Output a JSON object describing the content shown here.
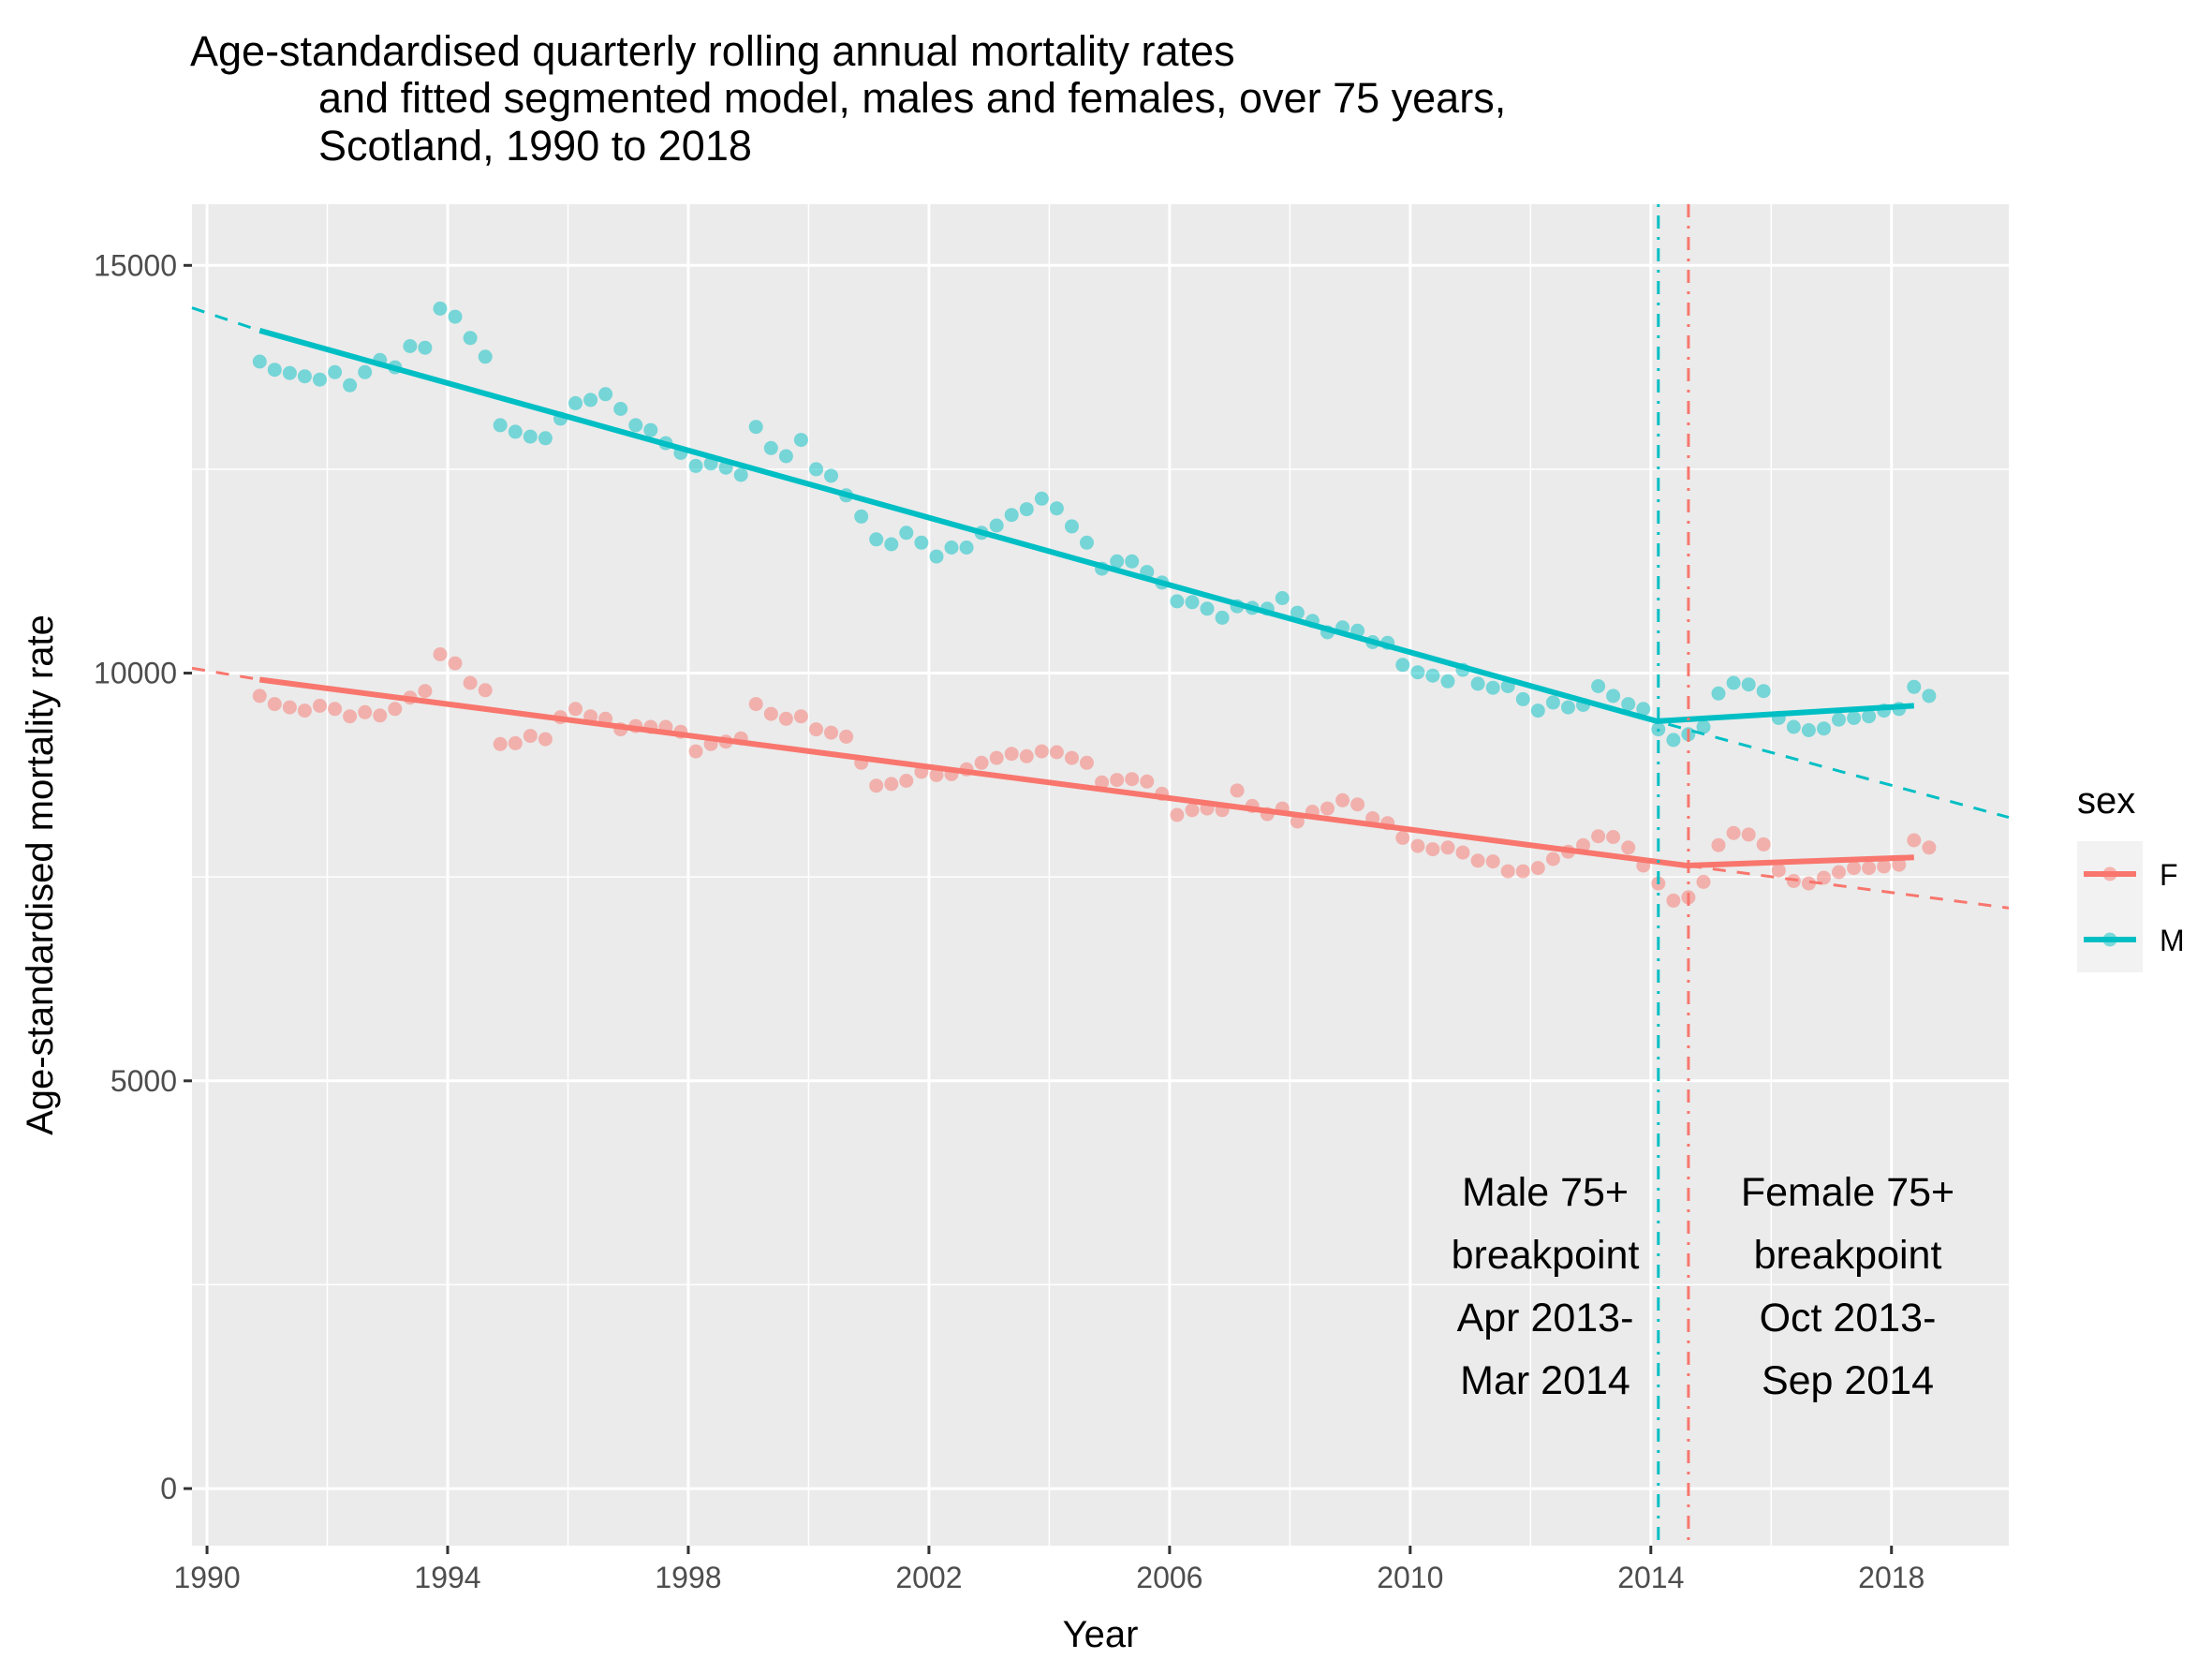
{
  "chart_data": {
    "type": "scatter",
    "title_lines": [
      "Age-standardised quarterly rolling annual mortality rates",
      "and fitted segmented model, males and females, over 75 years,",
      "Scotland, 1990 to 2018"
    ],
    "xlabel": "Year",
    "ylabel": "Age-standardised mortality rate",
    "xlim": [
      1989.75,
      2019.95
    ],
    "ylim": [
      -700,
      15750
    ],
    "x_ticks": [
      1990,
      1994,
      1998,
      2002,
      2006,
      2010,
      2014,
      2018
    ],
    "y_ticks": [
      0,
      5000,
      10000,
      15000
    ],
    "x_tick_labels": [
      "1990",
      "1994",
      "1998",
      "2002",
      "2006",
      "2010",
      "2014",
      "2018"
    ],
    "y_tick_labels": [
      "0",
      "5000",
      "10000",
      "15000"
    ],
    "grid": true,
    "legend": {
      "title": "sex",
      "position": "right",
      "entries": [
        "F",
        "M"
      ]
    },
    "series": [
      {
        "name": "F",
        "color": "#F8766D",
        "start": 1990.875,
        "step": 0.25,
        "values": [
          9720,
          9620,
          9580,
          9540,
          9600,
          9560,
          9470,
          9520,
          9480,
          9560,
          9700,
          9780,
          10230,
          10120,
          9880,
          9790,
          9130,
          9140,
          9230,
          9190,
          9460,
          9560,
          9470,
          9440,
          9310,
          9350,
          9340,
          9340,
          9280,
          9040,
          9130,
          9160,
          9200,
          9620,
          9500,
          9440,
          9470,
          9310,
          9270,
          9220,
          8900,
          8620,
          8640,
          8680,
          8790,
          8750,
          8760,
          8820,
          8900,
          8960,
          9010,
          8980,
          9040,
          9030,
          8960,
          8900,
          8660,
          8690,
          8700,
          8670,
          8520,
          8260,
          8320,
          8340,
          8320,
          8560,
          8370,
          8270,
          8340,
          8180,
          8300,
          8340,
          8440,
          8390,
          8220,
          8160,
          7980,
          7880,
          7840,
          7860,
          7800,
          7700,
          7690,
          7570,
          7570,
          7610,
          7720,
          7810,
          7890,
          8000,
          7990,
          7860,
          7640,
          7420,
          7210,
          7250,
          7440,
          7890,
          8040,
          8020,
          7900,
          7580,
          7450,
          7420,
          7490,
          7560,
          7610,
          7610,
          7630,
          7650,
          7950,
          7860
        ]
      },
      {
        "name": "M",
        "color": "#00BFC4",
        "start": 1990.875,
        "step": 0.25,
        "values": [
          13820,
          13720,
          13680,
          13640,
          13600,
          13690,
          13530,
          13690,
          13840,
          13750,
          14010,
          13990,
          14470,
          14370,
          14110,
          13880,
          13040,
          12960,
          12900,
          12880,
          13120,
          13310,
          13350,
          13420,
          13240,
          13040,
          12980,
          12820,
          12700,
          12540,
          12570,
          12520,
          12430,
          13020,
          12760,
          12660,
          12860,
          12500,
          12420,
          12180,
          11920,
          11640,
          11580,
          11720,
          11600,
          11430,
          11540,
          11540,
          11720,
          11810,
          11940,
          12010,
          12140,
          12020,
          11800,
          11600,
          11280,
          11370,
          11370,
          11240,
          11110,
          10880,
          10870,
          10790,
          10680,
          10820,
          10800,
          10790,
          10920,
          10740,
          10640,
          10500,
          10560,
          10520,
          10380,
          10370,
          10100,
          10010,
          9970,
          9900,
          10040,
          9870,
          9820,
          9840,
          9680,
          9540,
          9640,
          9580,
          9610,
          9840,
          9720,
          9620,
          9560,
          9310,
          9180,
          9250,
          9340,
          9750,
          9880,
          9860,
          9780,
          9450,
          9340,
          9300,
          9320,
          9430,
          9450,
          9470,
          9540,
          9560,
          9830,
          9720
        ]
      }
    ],
    "fitted_segments": [
      {
        "name": "F",
        "solid": [
          [
            1990.875,
            9920
          ],
          [
            2014.6,
            7640
          ],
          [
            2018.375,
            7740
          ]
        ],
        "dashed": [
          [
            1989.75,
            10060
          ],
          [
            1990.875,
            9920
          ],
          [
            2014.6,
            7640
          ],
          [
            2019.95,
            7120
          ]
        ]
      },
      {
        "name": "M",
        "solid": [
          [
            1990.875,
            14200
          ],
          [
            2014.1,
            9410
          ],
          [
            2018.375,
            9600
          ]
        ],
        "dashed": [
          [
            1989.75,
            14480
          ],
          [
            1990.875,
            14200
          ],
          [
            2014.1,
            9410
          ],
          [
            2019.95,
            8230
          ]
        ]
      }
    ],
    "breakpoints": [
      {
        "name": "M",
        "x": 2014.125,
        "line_style": "dotdash",
        "color": "#00BFC4",
        "label_lines": [
          "Male 75+",
          "breakpoint",
          "Apr 2013-",
          "Mar 2014"
        ]
      },
      {
        "name": "F",
        "x": 2014.625,
        "line_style": "dashdot",
        "color": "#F8766D",
        "label_lines": [
          "Female 75+",
          "breakpoint",
          "Oct 2013-",
          "Sep 2014"
        ]
      }
    ]
  }
}
